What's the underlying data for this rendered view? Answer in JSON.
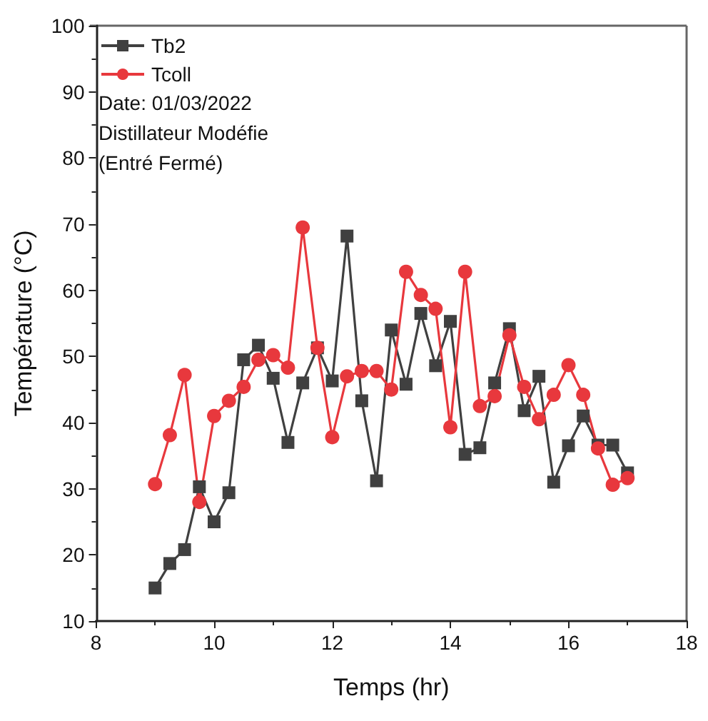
{
  "chart_data": {
    "type": "line",
    "xlabel": "Temps (hr)",
    "ylabel": "Température (°C)",
    "x": [
      9,
      9.25,
      9.5,
      9.75,
      10,
      10.25,
      10.5,
      10.75,
      11,
      11.25,
      11.5,
      11.75,
      12,
      12.25,
      12.5,
      12.75,
      13,
      13.25,
      13.5,
      13.75,
      14,
      14.25,
      14.5,
      14.75,
      15,
      15.25,
      15.5,
      15.75,
      16,
      16.25,
      16.5,
      16.75,
      17
    ],
    "series": [
      {
        "name": "Tb2",
        "color": "#404040",
        "marker": "square",
        "values": [
          15,
          18.7,
          20.8,
          30.3,
          25,
          29.4,
          49.5,
          51.7,
          46.7,
          37,
          46,
          51.3,
          46.3,
          68.2,
          43.3,
          31.2,
          54,
          45.8,
          56.5,
          48.6,
          55.3,
          35.2,
          36.2,
          46,
          54.2,
          41.8,
          47,
          31,
          36.5,
          41,
          36.6,
          36.6,
          32.4
        ]
      },
      {
        "name": "Tcoll",
        "color": "#e8383d",
        "marker": "circle",
        "values": [
          30.7,
          38.1,
          47.2,
          28,
          41,
          43.3,
          45.4,
          49.5,
          50.2,
          48.3,
          69.5,
          51.3,
          37.8,
          47,
          47.8,
          47.8,
          45,
          62.8,
          59.3,
          57.2,
          39.3,
          62.8,
          42.5,
          44,
          53.2,
          45.4,
          40.5,
          44.2,
          48.7,
          44.2,
          36.1,
          30.6,
          31.6
        ]
      }
    ],
    "xlim": [
      8,
      18
    ],
    "xticks": [
      8,
      10,
      12,
      14,
      16,
      18
    ],
    "ylim": [
      10,
      100
    ],
    "yticks": [
      10,
      20,
      30,
      40,
      50,
      60,
      70,
      80,
      90,
      100
    ],
    "legend": "top left",
    "grid": false,
    "annotations": [
      "Date: 01/03/2022",
      "Distillateur Modéfie",
      "(Entré Fermé)"
    ]
  }
}
